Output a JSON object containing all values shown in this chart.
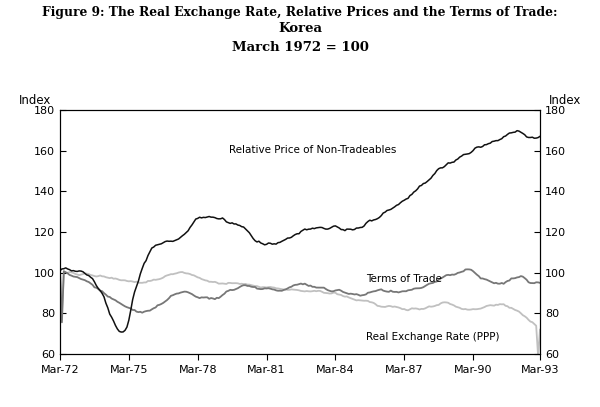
{
  "title_line1": "Figure 9: The Real Exchange Rate, Relative Prices and the Terms of Trade:",
  "title_line2": "Korea",
  "title_line3": "March 1972 = 100",
  "ylabel": "Index",
  "ylim": [
    60,
    180
  ],
  "yticks": [
    60,
    80,
    100,
    120,
    140,
    160,
    180
  ],
  "xtick_labels": [
    "Mar-72",
    "Mar-75",
    "Mar-78",
    "Mar-81",
    "Mar-84",
    "Mar-87",
    "Mar-90",
    "Mar-93"
  ],
  "color_nontrade": "#111111",
  "color_tot": "#777777",
  "color_rer": "#c0c0c0",
  "label_nontrade": "Relative Price of Non-Tradeables",
  "label_tot": "Terms of Trade",
  "label_rer": "Real Exchange Rate (PPP)",
  "nt_x": [
    0,
    6,
    12,
    18,
    22,
    26,
    30,
    34,
    36,
    38,
    42,
    48,
    54,
    60,
    66,
    72,
    78,
    84,
    90,
    96,
    102,
    108,
    114,
    120,
    126,
    132,
    138,
    144,
    150,
    156,
    162,
    168,
    174,
    180,
    186,
    192,
    198,
    204,
    210,
    216,
    222,
    228,
    234,
    240,
    246,
    251
  ],
  "nt_y": [
    101,
    101,
    100,
    96,
    90,
    80,
    71,
    72,
    74,
    88,
    100,
    113,
    115,
    116,
    120,
    127,
    128,
    126,
    124,
    122,
    116,
    113,
    114,
    117,
    120,
    122,
    122,
    122,
    121,
    122,
    125,
    128,
    132,
    136,
    141,
    145,
    150,
    154,
    157,
    160,
    163,
    165,
    168,
    170,
    166,
    167
  ],
  "tot_x": [
    0,
    6,
    12,
    18,
    24,
    30,
    36,
    42,
    48,
    54,
    60,
    66,
    72,
    78,
    84,
    90,
    96,
    102,
    108,
    114,
    120,
    126,
    132,
    138,
    144,
    150,
    156,
    162,
    168,
    174,
    180,
    186,
    192,
    198,
    204,
    210,
    216,
    218,
    222,
    228,
    234,
    238,
    242,
    246,
    251
  ],
  "tot_y": [
    101,
    99,
    97,
    93,
    89,
    85,
    82,
    80,
    82,
    86,
    90,
    91,
    88,
    87,
    89,
    92,
    94,
    93,
    92,
    91,
    93,
    95,
    94,
    92,
    91,
    90,
    89,
    90,
    91,
    91,
    91,
    92,
    94,
    97,
    99,
    101,
    102,
    99,
    96,
    94,
    96,
    98,
    97,
    95,
    95
  ],
  "rer_x": [
    0,
    6,
    12,
    18,
    24,
    30,
    36,
    42,
    48,
    54,
    60,
    66,
    72,
    78,
    84,
    90,
    96,
    102,
    108,
    114,
    120,
    126,
    132,
    138,
    144,
    150,
    156,
    162,
    168,
    174,
    180,
    186,
    192,
    196,
    200,
    206,
    210,
    216,
    220,
    226,
    232,
    238,
    244,
    251
  ],
  "rer_y": [
    101,
    100,
    99,
    99,
    98,
    97,
    96,
    95,
    96,
    98,
    100,
    100,
    98,
    96,
    95,
    95,
    95,
    94,
    93,
    92,
    92,
    91,
    91,
    90,
    90,
    88,
    87,
    86,
    84,
    83,
    82,
    82,
    83,
    84,
    85,
    84,
    82,
    82,
    83,
    84,
    85,
    82,
    78,
    72
  ]
}
